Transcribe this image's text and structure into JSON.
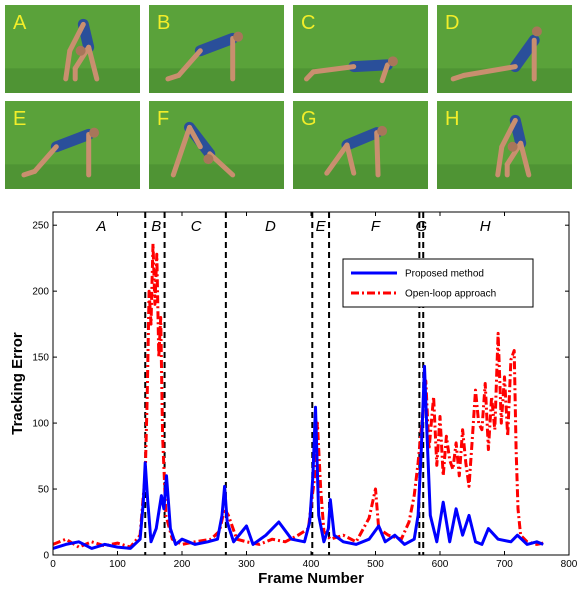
{
  "frames": [
    {
      "letter": "A",
      "pose": "forward-fold"
    },
    {
      "letter": "B",
      "pose": "plank"
    },
    {
      "letter": "C",
      "pose": "low-plank"
    },
    {
      "letter": "D",
      "pose": "upward-dog"
    },
    {
      "letter": "E",
      "pose": "plank"
    },
    {
      "letter": "F",
      "pose": "downward-dog"
    },
    {
      "letter": "G",
      "pose": "plank-step"
    },
    {
      "letter": "H",
      "pose": "forward-fold"
    }
  ],
  "chart_data": {
    "type": "line",
    "xlabel": "Frame Number",
    "ylabel": "Tracking Error",
    "xlim": [
      0,
      800
    ],
    "ylim": [
      0,
      260
    ],
    "xticks": [
      0,
      100,
      200,
      300,
      400,
      500,
      600,
      700,
      800
    ],
    "yticks": [
      0,
      50,
      100,
      150,
      200,
      250
    ],
    "phase_boundaries": [
      143,
      173,
      268,
      402,
      428,
      568,
      574
    ],
    "phase_labels": [
      {
        "text": "A",
        "x": 75
      },
      {
        "text": "B",
        "x": 160
      },
      {
        "text": "C",
        "x": 222
      },
      {
        "text": "D",
        "x": 337
      },
      {
        "text": "E",
        "x": 415
      },
      {
        "text": "F",
        "x": 500
      },
      {
        "text": "G",
        "x": 571
      },
      {
        "text": "H",
        "x": 670
      }
    ],
    "legend": {
      "placement": "upper-right",
      "entries": [
        "Proposed method",
        "Open-loop approach"
      ]
    },
    "series": [
      {
        "name": "Proposed method",
        "color": "#0000ff",
        "style": "solid",
        "points": [
          [
            0,
            5
          ],
          [
            20,
            8
          ],
          [
            40,
            10
          ],
          [
            60,
            5
          ],
          [
            80,
            8
          ],
          [
            100,
            6
          ],
          [
            120,
            5
          ],
          [
            135,
            12
          ],
          [
            140,
            40
          ],
          [
            143,
            70
          ],
          [
            147,
            40
          ],
          [
            152,
            10
          ],
          [
            160,
            20
          ],
          [
            168,
            45
          ],
          [
            172,
            35
          ],
          [
            176,
            60
          ],
          [
            182,
            20
          ],
          [
            190,
            8
          ],
          [
            200,
            12
          ],
          [
            220,
            8
          ],
          [
            240,
            10
          ],
          [
            255,
            12
          ],
          [
            262,
            30
          ],
          [
            266,
            52
          ],
          [
            270,
            25
          ],
          [
            280,
            10
          ],
          [
            300,
            22
          ],
          [
            310,
            8
          ],
          [
            330,
            15
          ],
          [
            350,
            25
          ],
          [
            370,
            12
          ],
          [
            390,
            10
          ],
          [
            398,
            25
          ],
          [
            403,
            60
          ],
          [
            407,
            112
          ],
          [
            412,
            30
          ],
          [
            420,
            10
          ],
          [
            427,
            20
          ],
          [
            430,
            42
          ],
          [
            436,
            15
          ],
          [
            450,
            10
          ],
          [
            470,
            8
          ],
          [
            490,
            12
          ],
          [
            505,
            22
          ],
          [
            515,
            10
          ],
          [
            530,
            15
          ],
          [
            545,
            8
          ],
          [
            560,
            12
          ],
          [
            566,
            30
          ],
          [
            571,
            80
          ],
          [
            576,
            143
          ],
          [
            580,
            90
          ],
          [
            585,
            30
          ],
          [
            595,
            10
          ],
          [
            605,
            40
          ],
          [
            615,
            10
          ],
          [
            625,
            35
          ],
          [
            635,
            15
          ],
          [
            645,
            30
          ],
          [
            655,
            10
          ],
          [
            665,
            8
          ],
          [
            675,
            20
          ],
          [
            690,
            12
          ],
          [
            710,
            10
          ],
          [
            720,
            15
          ],
          [
            735,
            8
          ],
          [
            750,
            10
          ],
          [
            760,
            8
          ]
        ]
      },
      {
        "name": "Open-loop approach",
        "color": "#ff0000",
        "style": "dash-dot",
        "points": [
          [
            0,
            8
          ],
          [
            20,
            12
          ],
          [
            40,
            6
          ],
          [
            60,
            10
          ],
          [
            80,
            7
          ],
          [
            100,
            9
          ],
          [
            120,
            6
          ],
          [
            135,
            15
          ],
          [
            140,
            45
          ],
          [
            143,
            60
          ],
          [
            146,
            120
          ],
          [
            149,
            200
          ],
          [
            152,
            175
          ],
          [
            155,
            236
          ],
          [
            158,
            190
          ],
          [
            161,
            228
          ],
          [
            164,
            150
          ],
          [
            167,
            180
          ],
          [
            170,
            90
          ],
          [
            175,
            30
          ],
          [
            185,
            12
          ],
          [
            200,
            8
          ],
          [
            220,
            10
          ],
          [
            245,
            12
          ],
          [
            258,
            18
          ],
          [
            266,
            35
          ],
          [
            272,
            30
          ],
          [
            285,
            12
          ],
          [
            300,
            10
          ],
          [
            320,
            8
          ],
          [
            340,
            12
          ],
          [
            360,
            10
          ],
          [
            380,
            15
          ],
          [
            396,
            20
          ],
          [
            402,
            45
          ],
          [
            406,
            60
          ],
          [
            410,
            100
          ],
          [
            415,
            50
          ],
          [
            420,
            18
          ],
          [
            430,
            12
          ],
          [
            450,
            15
          ],
          [
            470,
            10
          ],
          [
            490,
            28
          ],
          [
            500,
            50
          ],
          [
            505,
            20
          ],
          [
            520,
            15
          ],
          [
            540,
            12
          ],
          [
            552,
            25
          ],
          [
            560,
            45
          ],
          [
            566,
            70
          ],
          [
            572,
            100
          ],
          [
            578,
            132
          ],
          [
            583,
            80
          ],
          [
            590,
            120
          ],
          [
            595,
            68
          ],
          [
            600,
            105
          ],
          [
            605,
            60
          ],
          [
            610,
            90
          ],
          [
            615,
            72
          ],
          [
            620,
            65
          ],
          [
            625,
            85
          ],
          [
            630,
            60
          ],
          [
            635,
            95
          ],
          [
            640,
            70
          ],
          [
            645,
            52
          ],
          [
            650,
            88
          ],
          [
            655,
            125
          ],
          [
            660,
            100
          ],
          [
            665,
            95
          ],
          [
            670,
            130
          ],
          [
            675,
            80
          ],
          [
            680,
            120
          ],
          [
            685,
            95
          ],
          [
            690,
            168
          ],
          [
            695,
            100
          ],
          [
            700,
            135
          ],
          [
            705,
            90
          ],
          [
            710,
            148
          ],
          [
            715,
            155
          ],
          [
            718,
            80
          ],
          [
            721,
            35
          ],
          [
            725,
            15
          ],
          [
            735,
            10
          ],
          [
            750,
            8
          ],
          [
            760,
            9
          ]
        ]
      }
    ]
  }
}
